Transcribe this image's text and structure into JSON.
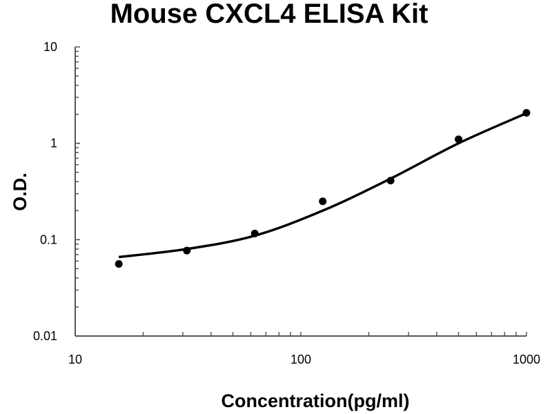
{
  "chart_data": {
    "type": "scatter",
    "title": "Mouse CXCL4 ELISA Kit",
    "xlabel": "Concentration(pg/ml)",
    "ylabel": "O.D.",
    "xscale": "log",
    "yscale": "log",
    "xlim": [
      10,
      1000
    ],
    "ylim": [
      0.01,
      10
    ],
    "xticks": [
      "10",
      "100",
      "1000"
    ],
    "yticks": [
      "0.01",
      "0.1",
      "1",
      "10"
    ],
    "grid": false,
    "legend": "none",
    "series": [
      {
        "x": [
          15.6,
          31.25,
          62.5,
          125,
          250,
          500,
          1000
        ],
        "y": [
          0.056,
          0.077,
          0.116,
          0.25,
          0.41,
          1.1,
          2.07
        ],
        "marker": "circle",
        "color": "#000000"
      }
    ],
    "fit_curve": {
      "x": [
        15.6,
        31.25,
        62.5,
        125,
        250,
        500,
        1000
      ],
      "y": [
        0.066,
        0.08,
        0.11,
        0.2,
        0.43,
        1.0,
        2.05
      ],
      "color": "#000000"
    }
  }
}
